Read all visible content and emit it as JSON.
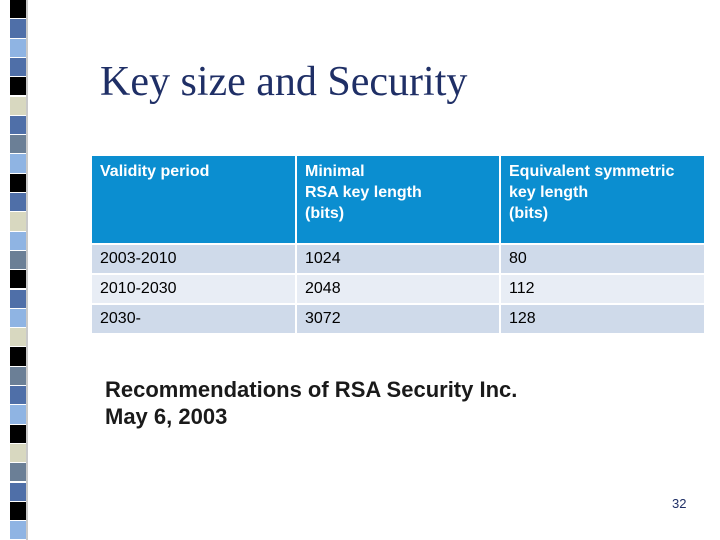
{
  "slide": {
    "title": "Key size and Security",
    "table": {
      "headers": [
        [
          "Validity period"
        ],
        [
          "Minimal",
          "RSA key length",
          "(bits)"
        ],
        [
          "Equivalent symmetric",
          "key length",
          "(bits)"
        ]
      ],
      "rows": [
        [
          "2003-2010",
          "1024",
          "80"
        ],
        [
          "2010-2030",
          "2048",
          "112"
        ],
        [
          "2030-",
          "3072",
          "128"
        ]
      ]
    },
    "caption": [
      "Recommendations of RSA Security Inc.",
      "May 6, 2003"
    ],
    "page_number": "32"
  },
  "colors": {
    "header_fill": "#0b8ed0",
    "row_odd_fill": "#cfdaea",
    "row_even_fill": "#e8edf5",
    "title_color": "#1f2f66",
    "strip_colors": [
      "#000000",
      "#4f6fa8",
      "#8fb4e3",
      "#d8d8c0",
      "#6b7f96"
    ]
  }
}
